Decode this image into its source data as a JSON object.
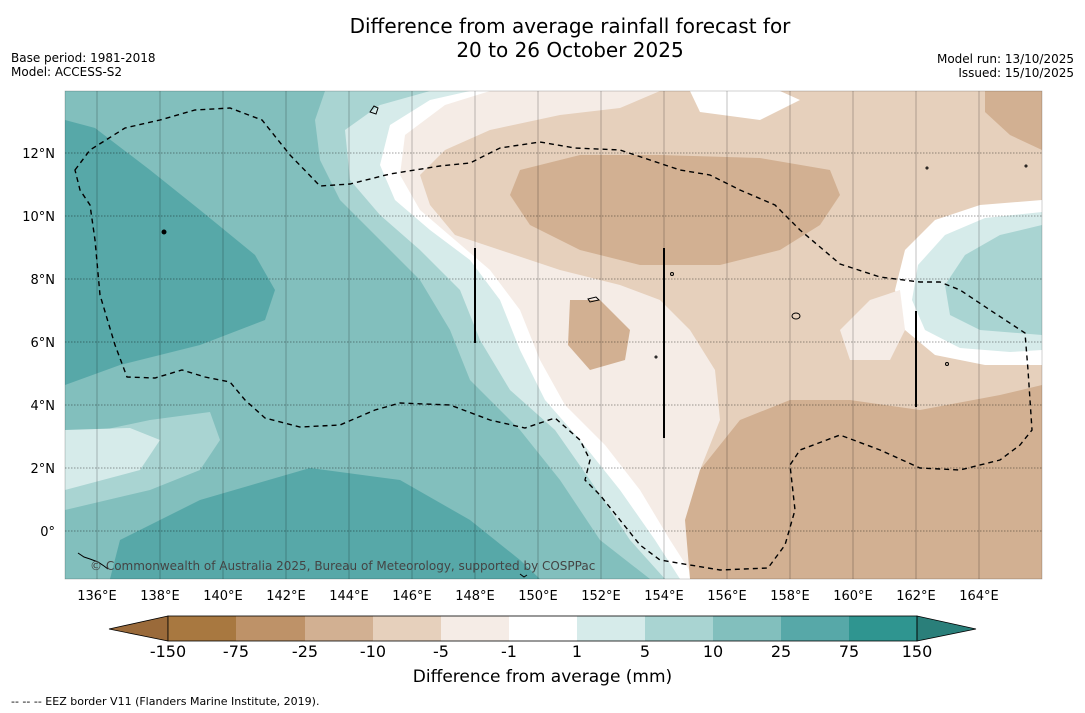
{
  "title": {
    "line1": "Difference from average rainfall forecast for",
    "line2": "20 to 26 October 2025"
  },
  "meta": {
    "base_period": "Base period: 1981-2018",
    "model": "Model: ACCESS-S2",
    "model_run": "Model run: 13/10/2025",
    "issued": "Issued: 15/10/2025"
  },
  "copyright": "© Commonwealth of Australia 2025, Bureau of Meteorology, supported by COSPPac",
  "legend": {
    "title": "Difference from average (mm)",
    "labels": [
      "-150",
      "-75",
      "-25",
      "-10",
      "-5",
      "-1",
      "1",
      "5",
      "10",
      "25",
      "75",
      "150"
    ],
    "colors": [
      "#a87840",
      "#be9268",
      "#d2b092",
      "#e6d0bc",
      "#f5ece6",
      "#ffffff",
      "#d6ebea",
      "#a9d4d2",
      "#82bfbd",
      "#57a8a8",
      "#2f9590"
    ],
    "low_arrow_color": "#9a6a3a",
    "high_arrow_color": "#2a7f7a"
  },
  "footnote": "-- -- -- EEZ border V11 (Flanders Marine Institute, 2019).",
  "chart_data": {
    "type": "heatmap",
    "lon_range": [
      135,
      166
    ],
    "lat_range": [
      -1.5,
      14
    ],
    "lon_ticks": [
      "136°E",
      "138°E",
      "140°E",
      "142°E",
      "144°E",
      "146°E",
      "148°E",
      "150°E",
      "152°E",
      "154°E",
      "156°E",
      "158°E",
      "160°E",
      "162°E",
      "164°E"
    ],
    "lat_ticks": [
      "12°N",
      "10°N",
      "8°N",
      "6°N",
      "4°N",
      "2°N",
      "0°"
    ],
    "summary": "Wetter than average west of about 148°E (up to 25-75 mm above), drier than average east of about 150°E (-10 to -25 mm), small wetter patch near 163-165°E, 6-8°N."
  }
}
